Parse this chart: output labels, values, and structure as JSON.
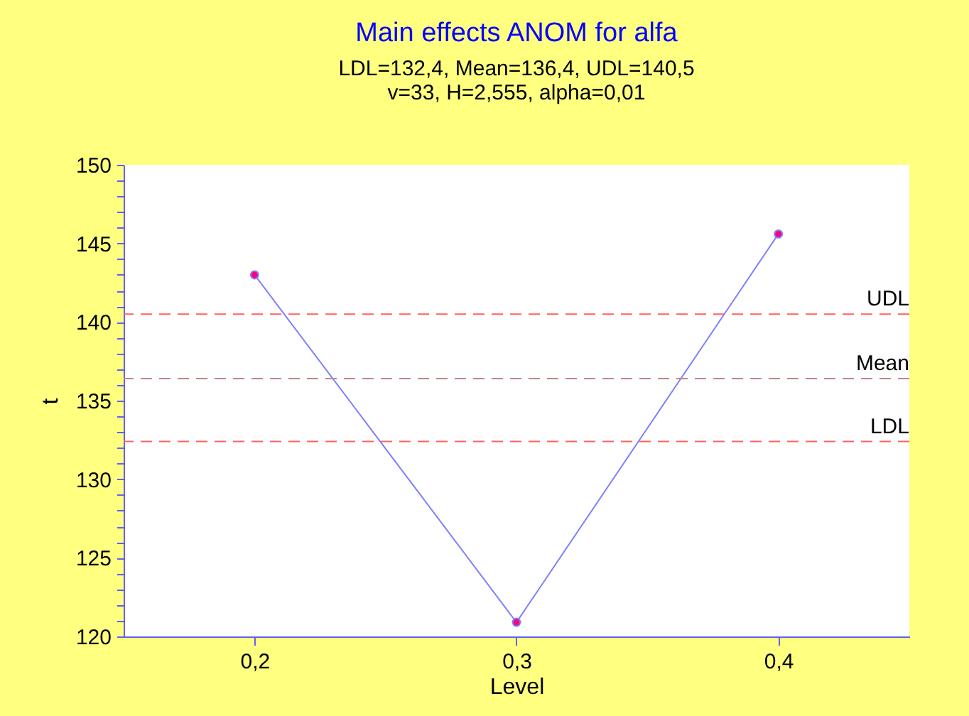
{
  "chart_data": {
    "type": "line",
    "title": "Main effects ANOM for alfa",
    "subtitle": [
      "LDL=132,4, Mean=136,4, UDL=140,5",
      "v=33, H=2,555, alpha=0,01"
    ],
    "xlabel": "Level",
    "ylabel": "t",
    "x": [
      0.2,
      0.3,
      0.4
    ],
    "series": [
      {
        "color": "#8080ff",
        "values": [
          143.0,
          120.9,
          145.6
        ]
      }
    ],
    "xlim": [
      0.15,
      0.45
    ],
    "xticks": [
      {
        "value": 0.2,
        "label": "0,2"
      },
      {
        "value": 0.3,
        "label": "0,3"
      },
      {
        "value": 0.4,
        "label": "0,4"
      }
    ],
    "ylim": [
      120,
      150
    ],
    "yticks": [
      120,
      {
        "value": 121,
        "label": null
      },
      {
        "value": 122,
        "label": null
      },
      {
        "value": 123,
        "label": null
      },
      {
        "value": 124,
        "label": null
      },
      125,
      {
        "value": 126,
        "label": null
      },
      {
        "value": 127,
        "label": null
      },
      {
        "value": 128,
        "label": null
      },
      {
        "value": 129,
        "label": null
      },
      130,
      {
        "value": 131,
        "label": null
      },
      {
        "value": 132,
        "label": null
      },
      {
        "value": 133,
        "label": null
      },
      {
        "value": 134,
        "label": null
      },
      135,
      {
        "value": 136,
        "label": null
      },
      {
        "value": 137,
        "label": null
      },
      {
        "value": 138,
        "label": null
      },
      {
        "value": 139,
        "label": null
      },
      140,
      {
        "value": 141,
        "label": null
      },
      {
        "value": 142,
        "label": null
      },
      {
        "value": 143,
        "label": null
      },
      {
        "value": 144,
        "label": null
      },
      145,
      {
        "value": 146,
        "label": null
      },
      {
        "value": 147,
        "label": null
      },
      {
        "value": 148,
        "label": null
      },
      {
        "value": 149,
        "label": null
      },
      150
    ],
    "ref_lines": [
      {
        "axis": "y",
        "value": 140.5,
        "label": "UDL",
        "color": "#ff6060",
        "line_style": "dashed"
      },
      {
        "axis": "y",
        "value": 136.4,
        "label": "Mean",
        "color": "#c08888",
        "line_style": "dashed"
      },
      {
        "axis": "y",
        "value": 132.4,
        "label": "LDL",
        "color": "#ff6060",
        "line_style": "dashed"
      }
    ],
    "marker": "circle",
    "line_style": "solid",
    "grid": false
  }
}
